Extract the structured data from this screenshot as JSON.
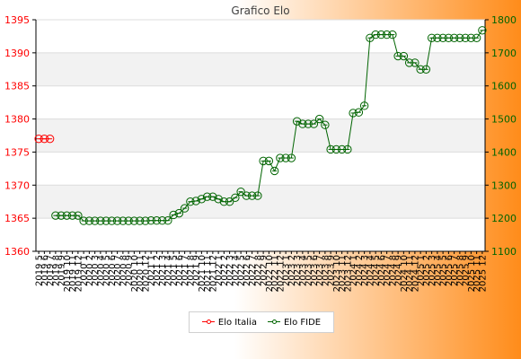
{
  "chart_data": {
    "type": "line",
    "title": "Grafico Elo",
    "x": [
      "2019 5",
      "2019 6",
      "2019 7",
      "2019 8",
      "2019 9",
      "2019 10",
      "2019 11",
      "2019 12",
      "2020 1",
      "2020 2",
      "2020 3",
      "2020 4",
      "2020 5",
      "2020 6",
      "2020 7",
      "2020 8",
      "2020 9",
      "2020 10",
      "2020 11",
      "2020 12",
      "2021 1",
      "2021 2",
      "2021 3",
      "2021 4",
      "2021 5",
      "2021 6",
      "2021 7",
      "2021 8",
      "2021 9",
      "2021 10",
      "2021 11",
      "2021 12",
      "2022 1",
      "2022 2",
      "2022 3",
      "2022 4",
      "2022 5",
      "2022 6",
      "2022 7",
      "2022 8",
      "2022 9",
      "2022 10",
      "2022 11",
      "2022 12",
      "2023 1",
      "2023 2",
      "2023 3",
      "2023 4",
      "2023 5",
      "2023 6",
      "2023 7",
      "2023 8",
      "2023 9",
      "2023 10",
      "2023 11",
      "2023 12",
      "2024 1",
      "2024 2",
      "2024 3",
      "2024 4",
      "2024 5",
      "2024 6",
      "2024 7",
      "2024 8",
      "2024 9",
      "2024 10",
      "2024 11",
      "2024 12",
      "2025 1",
      "2025 2",
      "2025 3",
      "2025 4",
      "2025 5",
      "2025 6",
      "2025 7",
      "2025 8",
      "2025 9",
      "2025 10",
      "2025 11",
      "2025 12"
    ],
    "series": [
      {
        "name": "Elo Italia",
        "axis": "left",
        "color": "#ff0000",
        "values": [
          1377,
          1377,
          1377,
          null,
          null,
          null,
          null,
          null,
          null,
          null,
          null,
          null,
          null,
          null,
          null,
          null,
          null,
          null,
          null,
          null,
          null,
          null,
          null,
          null,
          null,
          null,
          null,
          null,
          null,
          null,
          null,
          null,
          null,
          null,
          null,
          null,
          null,
          null,
          null,
          null,
          null,
          null,
          null,
          null,
          null,
          null,
          null,
          null,
          null,
          null,
          null,
          null,
          null,
          null,
          null,
          null,
          null,
          null,
          null,
          null,
          null,
          null,
          null,
          null,
          null,
          null,
          null,
          null,
          null,
          null,
          null,
          null,
          null,
          null,
          null,
          null,
          null,
          null,
          null,
          null
        ]
      },
      {
        "name": "Elo FIDE",
        "axis": "right",
        "color": "#006400",
        "values": [
          null,
          null,
          null,
          1208,
          1208,
          1208,
          1208,
          1208,
          1192,
          1192,
          1192,
          1192,
          1192,
          1192,
          1192,
          1192,
          1192,
          1192,
          1192,
          1192,
          1193,
          1193,
          1193,
          1193,
          1210,
          1215,
          1230,
          1250,
          1252,
          1258,
          1265,
          1265,
          1258,
          1250,
          1250,
          1262,
          1280,
          1268,
          1268,
          1268,
          1373,
          1373,
          1343,
          1382,
          1382,
          1382,
          1493,
          1485,
          1485,
          1485,
          1500,
          1482,
          1408,
          1408,
          1408,
          1408,
          1518,
          1520,
          1540,
          1745,
          1755,
          1755,
          1755,
          1755,
          1690,
          1690,
          1670,
          1670,
          1650,
          1650,
          1745,
          1745,
          1745,
          1745,
          1745,
          1745,
          1745,
          1745,
          1745,
          1768
        ]
      }
    ],
    "y_left": {
      "min": 1360,
      "max": 1395,
      "ticks": [
        1360,
        1365,
        1370,
        1375,
        1380,
        1385,
        1390,
        1395
      ]
    },
    "y_right": {
      "min": 1100,
      "max": 1800,
      "ticks": [
        1100,
        1200,
        1300,
        1400,
        1500,
        1600,
        1700,
        1800
      ]
    },
    "legend_position": "bottom",
    "grid": true,
    "colors": {
      "background_left": "#ffffff",
      "background_right": "#ff8c1a",
      "plot_band": "#f2f2f2",
      "plot_bg": "#ffffff",
      "left_axis_text": "#ff0000",
      "right_axis_text": "#006400",
      "title": "#404040"
    }
  }
}
